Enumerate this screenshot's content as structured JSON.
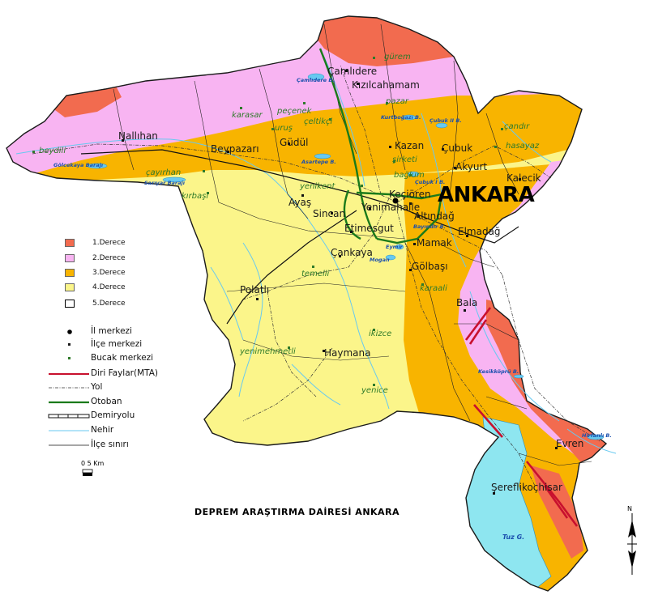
{
  "title": "DEPREM ARAŞTIRMA DAİRESİ ANKARA",
  "capital": "ANKARA",
  "colors": {
    "zone1": "#f26b4f",
    "zone2": "#f8b4f2",
    "zone3": "#f8b400",
    "zone4": "#fbf58a",
    "zone5": "#ffffff",
    "fault": "#c8102e",
    "motorway": "#1a7a1a",
    "river": "#67c9f0",
    "lake": "#8ee6f0",
    "bucak": "#2f7a2a"
  },
  "legend_zones": [
    {
      "label": "1.Derece",
      "color": "#f26b4f"
    },
    {
      "label": "2.Derece",
      "color": "#f8b4f2"
    },
    {
      "label": "3.Derece",
      "color": "#f8b400"
    },
    {
      "label": "4.Derece",
      "color": "#fbf58a"
    },
    {
      "label": "5.Derece",
      "color": "#ffffff"
    }
  ],
  "legend_symbols": [
    {
      "label": "İl merkezi",
      "icon": "province-center-dot"
    },
    {
      "label": "İlçe merkezi",
      "icon": "district-center-dot"
    },
    {
      "label": "Bucak merkezi",
      "icon": "subdistrict-center-dot"
    },
    {
      "label": "Diri Faylar(MTA)",
      "icon": "active-fault-line"
    },
    {
      "label": "Yol",
      "icon": "road-line"
    },
    {
      "label": "Otoban",
      "icon": "motorway-line"
    },
    {
      "label": "Demiryolu",
      "icon": "railway-line"
    },
    {
      "label": "Nehir",
      "icon": "river-line"
    },
    {
      "label": "İlçe sınırı",
      "icon": "district-border-line"
    }
  ],
  "scale": {
    "label": "0  5  Km"
  },
  "north": "N",
  "districts": [
    "Çamlıdere",
    "Kızılcahamam",
    "Nallıhan",
    "Beypazarı",
    "Güdül",
    "Kazan",
    "Çubuk",
    "Akyurt",
    "Kalecik",
    "Ayaş",
    "Sincan",
    "Yenimahalle",
    "Keçiören",
    "Altındağ",
    "Etimesgut",
    "Mamak",
    "Elmadağ",
    "Çankaya",
    "Gölbaşı",
    "Polatlı",
    "Bala",
    "Haymana",
    "Evren",
    "Şereflikoçhisar"
  ],
  "subdistricts": [
    "gürem",
    "peçenek",
    "pazar",
    "karasar",
    "çeltikçi",
    "çandır",
    "beydili",
    "hasayaz",
    "şirketi",
    "çayırhan",
    "bağlum",
    "kırbaşı",
    "yenikent",
    "temelli",
    "karaali",
    "ikizce",
    "yenimehmetli",
    "yenice",
    "uruş"
  ],
  "water_bodies": [
    "Çamlıdere B.",
    "Kurtboğazı B.",
    "Çubuk II B.",
    "Asartepe B.",
    "Çubuk I B.",
    "Bayındır B.",
    "Eymir",
    "Mogan",
    "Gölcekaya Barajı",
    "Sarıyar Barajı",
    "Kesikköprü B.",
    "Hirfanlı B.",
    "Tuz G."
  ]
}
